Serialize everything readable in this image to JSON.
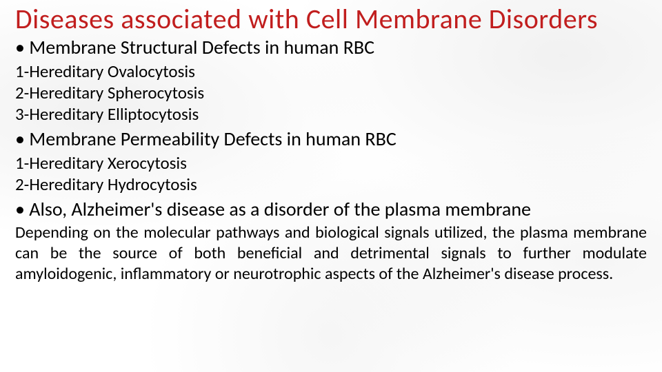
{
  "title": "Diseases associated with Cell Membrane Disorders",
  "section1": {
    "heading": "Membrane Structural Defects in human RBC",
    "items": [
      "1-Hereditary Ovalocytosis",
      "2-Hereditary Spherocytosis",
      "3-Hereditary Elliptocytosis"
    ]
  },
  "section2": {
    "heading": "Membrane Permeability Defects in human RBC",
    "items": [
      "1-Hereditary Xerocytosis",
      "2-Hereditary Hydrocytosis"
    ]
  },
  "section3": {
    "heading": "Also, Alzheimer's disease as a disorder of the plasma membrane",
    "paragraph": "Depending on the molecular pathways and biological signals utilized, the plasma membrane can be the source of both beneficial and detrimental signals to further modulate amyloidogenic, inflammatory or neurotrophic aspects of the Alzheimer's disease process."
  },
  "colors": {
    "title": "#c11e1e",
    "text": "#000000",
    "background": "#ffffff"
  },
  "fonts": {
    "title_size": 40,
    "subheading_size": 28,
    "list_size": 25,
    "paragraph_size": 24
  }
}
